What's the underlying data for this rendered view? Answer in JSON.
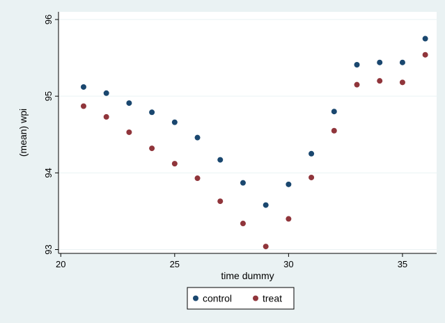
{
  "chart_data": {
    "type": "scatter",
    "xlabel": "time dummy",
    "ylabel": "(mean) wpi",
    "xlim": [
      19.9,
      36.5
    ],
    "ylim": [
      92.95,
      96.1
    ],
    "x_ticks": [
      20,
      25,
      30,
      35
    ],
    "y_ticks": [
      93,
      94,
      95,
      96
    ],
    "grid": "horizontal",
    "legend_position": "bottom-center",
    "background_color": "#eaf2f3",
    "plot_background_color": "#ffffff",
    "grid_color": "#eaf2f3",
    "series": [
      {
        "name": "control",
        "color": "#1a476f",
        "points": [
          {
            "x": 21,
            "y": 95.12
          },
          {
            "x": 22,
            "y": 95.04
          },
          {
            "x": 23,
            "y": 94.91
          },
          {
            "x": 24,
            "y": 94.79
          },
          {
            "x": 25,
            "y": 94.66
          },
          {
            "x": 26,
            "y": 94.46
          },
          {
            "x": 27,
            "y": 94.17
          },
          {
            "x": 28,
            "y": 93.87
          },
          {
            "x": 29,
            "y": 93.58
          },
          {
            "x": 30,
            "y": 93.85
          },
          {
            "x": 31,
            "y": 94.25
          },
          {
            "x": 32,
            "y": 94.8
          },
          {
            "x": 33,
            "y": 95.41
          },
          {
            "x": 34,
            "y": 95.44
          },
          {
            "x": 35,
            "y": 95.44
          },
          {
            "x": 36,
            "y": 95.75
          }
        ]
      },
      {
        "name": "treat",
        "color": "#90353b",
        "points": [
          {
            "x": 21,
            "y": 94.87
          },
          {
            "x": 22,
            "y": 94.73
          },
          {
            "x": 23,
            "y": 94.53
          },
          {
            "x": 24,
            "y": 94.32
          },
          {
            "x": 25,
            "y": 94.12
          },
          {
            "x": 26,
            "y": 93.93
          },
          {
            "x": 27,
            "y": 93.63
          },
          {
            "x": 28,
            "y": 93.34
          },
          {
            "x": 29,
            "y": 93.04
          },
          {
            "x": 30,
            "y": 93.4
          },
          {
            "x": 31,
            "y": 93.94
          },
          {
            "x": 32,
            "y": 94.55
          },
          {
            "x": 33,
            "y": 95.15
          },
          {
            "x": 34,
            "y": 95.2
          },
          {
            "x": 35,
            "y": 95.18
          },
          {
            "x": 36,
            "y": 95.54
          }
        ]
      }
    ]
  }
}
